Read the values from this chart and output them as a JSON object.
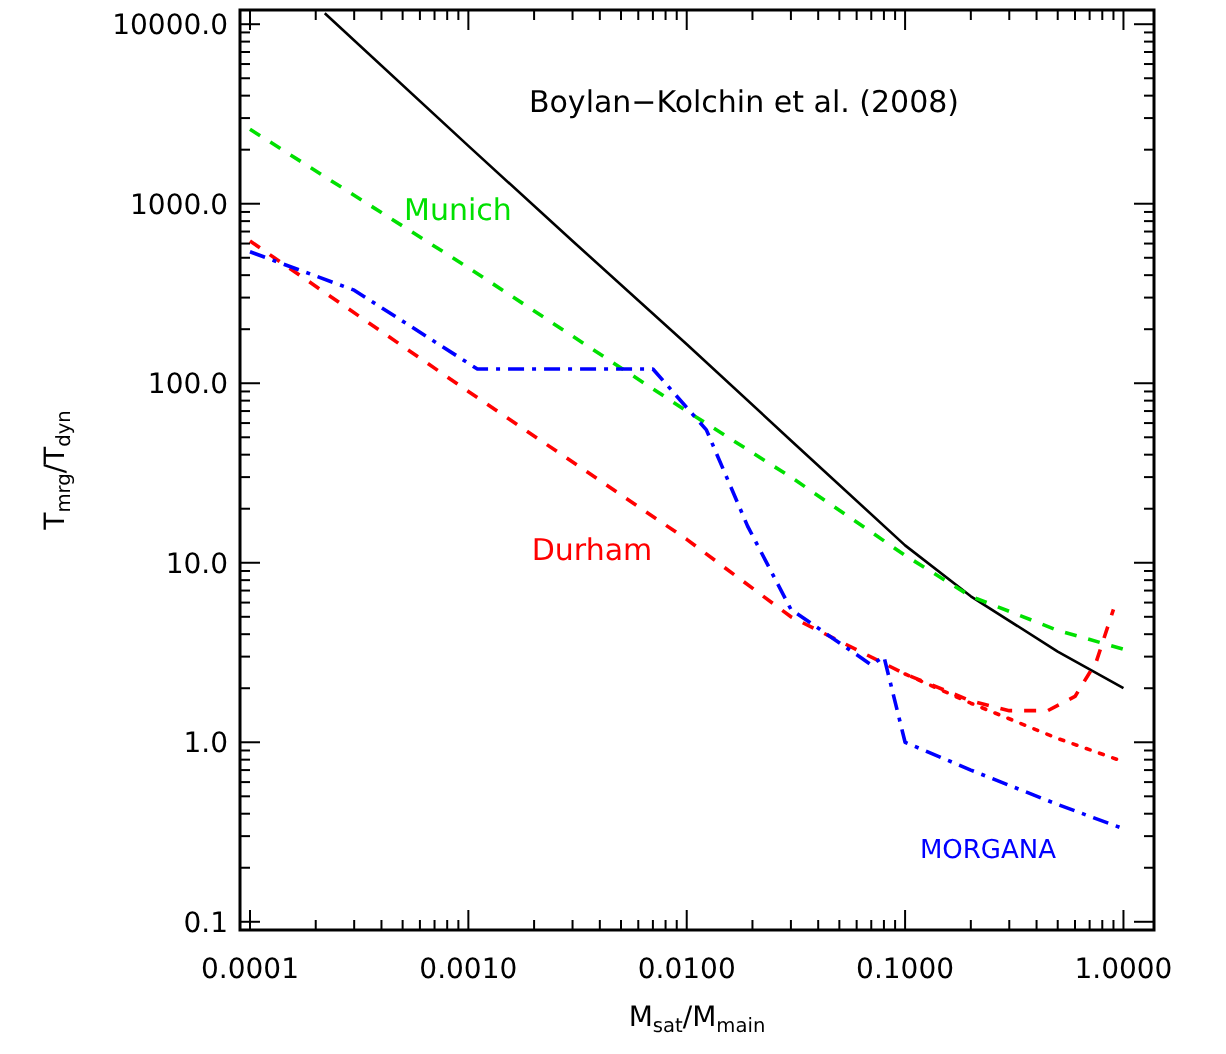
{
  "chart_data": {
    "type": "line",
    "xlabel": "M$_{sat}$/M$_{main}$",
    "ylabel": "T$_{mrg}$/T$_{dyn}$",
    "log": "xy",
    "grid": false,
    "xlim": [
      9e-05,
      1.38
    ],
    "ylim": [
      0.09,
      12000
    ],
    "xticks": [
      {
        "value": 0.0001,
        "label": "0.0001"
      },
      {
        "value": 0.001,
        "label": "0.0010"
      },
      {
        "value": 0.01,
        "label": "0.0100"
      },
      {
        "value": 0.1,
        "label": "0.1000"
      },
      {
        "value": 1,
        "label": "1.0000"
      }
    ],
    "yticks": [
      {
        "value": 0.1,
        "label": "0.1"
      },
      {
        "value": 1,
        "label": "1.0"
      },
      {
        "value": 10,
        "label": "10.0"
      },
      {
        "value": 100,
        "label": "100.0"
      },
      {
        "value": 1000,
        "label": "1000.0"
      },
      {
        "value": 10000,
        "label": "10000.0"
      }
    ],
    "series": [
      {
        "name": "Boylan−Kolchin et al. (2008)",
        "color": "#000000",
        "line_style": "solid",
        "x": [
          0.00022,
          0.001,
          0.003,
          0.01,
          0.03,
          0.1,
          0.2,
          0.5,
          1.0
        ],
        "values": [
          11500,
          2100,
          620,
          165,
          48,
          12.5,
          6.5,
          3.2,
          2.0
        ]
      },
      {
        "name": "Munich",
        "color": "#00e000",
        "line_style": "dashed",
        "x": [
          0.0001,
          0.001,
          0.01,
          0.03,
          0.1,
          0.2,
          0.5,
          1.0
        ],
        "values": [
          2600,
          440,
          70,
          30,
          11,
          6.5,
          4.2,
          3.3
        ]
      },
      {
        "name": "Durham",
        "color": "#ff0000",
        "line_style": "dashed",
        "x": [
          0.0001,
          0.001,
          0.01,
          0.03,
          0.1,
          0.2,
          0.3,
          0.45,
          0.6,
          0.75,
          0.9
        ],
        "values": [
          620,
          90,
          13.5,
          5,
          2.4,
          1.7,
          1.5,
          1.5,
          1.8,
          2.8,
          5.5
        ]
      },
      {
        "color": "#ff0000",
        "line_style": "dotted",
        "x": [
          0.1,
          0.2,
          0.5,
          1.0
        ],
        "values": [
          2.4,
          1.65,
          1.05,
          0.78
        ]
      },
      {
        "name": "MORGANA",
        "color": "#0000ff",
        "line_style": "dashdot",
        "x": [
          0.0001,
          0.0003,
          0.0011,
          0.007,
          0.0123,
          0.019,
          0.03,
          0.07,
          0.08,
          0.1,
          0.2,
          0.5,
          1.0
        ],
        "values": [
          540,
          330,
          120,
          120,
          55,
          16,
          5.5,
          2.7,
          3.0,
          1.0,
          0.7,
          0.45,
          0.33
        ]
      }
    ]
  }
}
